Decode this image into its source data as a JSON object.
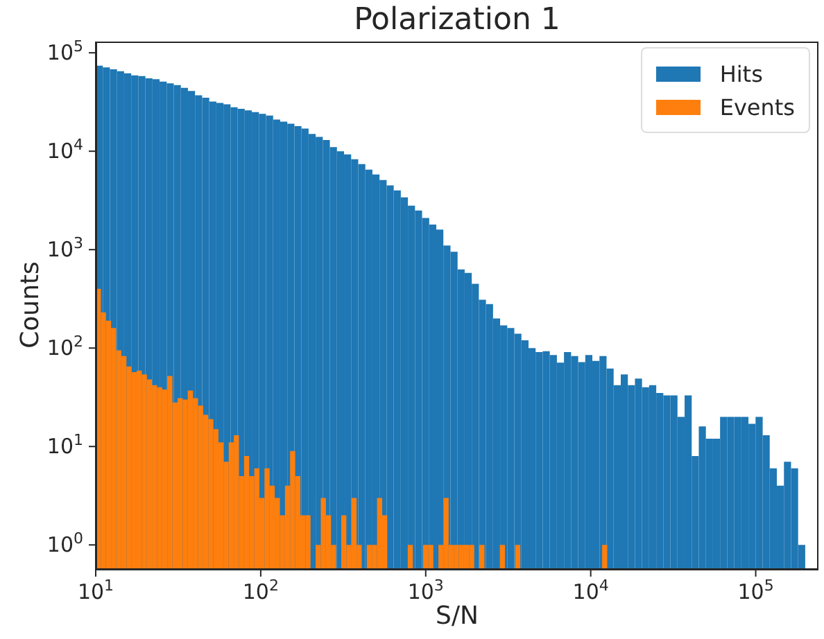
{
  "chart_data": {
    "type": "histogram",
    "title": "Polarization 1",
    "xlabel": "S/N",
    "ylabel": "Counts",
    "log": "xy",
    "legend": "top right",
    "xlim": [
      10,
      240000
    ],
    "ylim": [
      0.56,
      130000
    ],
    "xticks": [
      {
        "value": 10,
        "label": "10$^{1}$"
      },
      {
        "value": 100,
        "label": "10$^{2}$"
      },
      {
        "value": 1000,
        "label": "10$^{3}$"
      },
      {
        "value": 10000,
        "label": "10$^{4}$"
      },
      {
        "value": 100000,
        "label": "10$^{5}$"
      }
    ],
    "yticks": [
      {
        "value": 1,
        "label": "10$^{0}$"
      },
      {
        "value": 10,
        "label": "10$^{1}$"
      },
      {
        "value": 100,
        "label": "10$^{2}$"
      },
      {
        "value": 1000,
        "label": "10$^{3}$"
      },
      {
        "value": 10000,
        "label": "10$^{4}$"
      },
      {
        "value": 100000,
        "label": "10$^{5}$"
      }
    ],
    "bins": [
      10,
      11.04,
      12.19,
      13.46,
      14.86,
      16.41,
      18.11,
      20,
      22.08,
      24.38,
      26.92,
      29.72,
      32.81,
      36.22,
      39.99,
      44.16,
      48.75,
      53.83,
      59.43,
      65.61,
      72.44,
      79.98,
      88.31,
      97.5,
      107.6,
      118.9,
      131.2,
      144.9,
      160,
      176.6,
      195,
      215.3,
      237.7,
      262.4,
      289.7,
      319.9,
      353.2,
      389.9,
      430.5,
      475.3,
      524.8,
      579.4,
      639.7,
      706.3,
      779.8,
      861,
      950.6,
      1050,
      1159,
      1279,
      1413,
      1560,
      1722,
      1901,
      2099,
      2317,
      2559,
      2825,
      3119,
      3443,
      3802,
      4198,
      4634,
      5117,
      5649,
      6237,
      6887,
      7603,
      8395,
      9268,
      10230,
      11300,
      12470,
      13770,
      15210,
      16790,
      18540,
      20460,
      22590,
      24950,
      27540,
      30410,
      33570,
      37070,
      40930,
      45190,
      49890,
      55080,
      60810,
      67140,
      74130,
      81850,
      90360,
      99770,
      110200,
      121600,
      134300,
      148300,
      163700,
      180700,
      199500
    ],
    "series": [
      {
        "name": "Hits",
        "color": "#1f77b4",
        "values": [
          74000,
          71000,
          68000,
          65000,
          62000,
          59000,
          58000,
          55000,
          54000,
          51000,
          49000,
          47000,
          44000,
          41000,
          37000,
          35000,
          32000,
          31000,
          30000,
          28000,
          27000,
          26000,
          25000,
          24000,
          23000,
          21000,
          20000,
          19000,
          18000,
          17000,
          15000,
          14000,
          13000,
          11000,
          10000,
          9300,
          8300,
          7400,
          6500,
          5800,
          5100,
          4500,
          4000,
          3400,
          2800,
          2500,
          2100,
          1800,
          1600,
          1100,
          950,
          630,
          580,
          450,
          310,
          280,
          200,
          170,
          160,
          140,
          120,
          100,
          91,
          93,
          85,
          71,
          91,
          83,
          72,
          85,
          74,
          83,
          62,
          42,
          54,
          42,
          49,
          40,
          42,
          35,
          33,
          33,
          20,
          33,
          8,
          16,
          12,
          12,
          20,
          20,
          20,
          20,
          17,
          20,
          13,
          6,
          4,
          7,
          6,
          1
        ]
      },
      {
        "name": "Events",
        "color": "#ff7f0e",
        "bins": [
          10,
          10.74,
          11.53,
          12.39,
          13.3,
          14.29,
          15.35,
          16.48,
          17.7,
          19.01,
          20.42,
          21.93,
          23.55,
          25.29,
          27.16,
          29.17,
          31.33,
          33.65,
          36.14,
          38.82,
          41.69,
          44.77,
          48.08,
          51.64,
          55.46,
          59.57,
          63.97,
          68.71,
          73.79,
          79.25,
          85.11,
          91.41,
          98.17,
          105.4,
          113.2,
          121.6,
          130.6,
          140.3,
          150.7,
          161.8,
          173.8,
          186.6,
          200.4,
          215.3,
          231.2,
          248.3,
          266.7,
          286.4,
          307.6,
          330.4,
          354.8,
          381.1,
          409.3,
          439.5,
          472.1,
          507,
          544.5,
          584.8,
          628.1,
          674.5,
          724.4,
          778,
          835.6,
          897.4,
          963.8,
          1035,
          1112,
          1194,
          1282,
          1377,
          1479,
          1589,
          1706,
          1832,
          1968,
          2113,
          2270,
          2438,
          2618,
          2812,
          3020,
          3243,
          3483,
          3741,
          4018,
          4315,
          4634,
          4977,
          5346,
          5741,
          6166,
          6622,
          7112,
          7638,
          8204,
          8810,
          9462,
          10160,
          10910,
          11720,
          12590
        ],
        "values": [
          400,
          230,
          190,
          160,
          95,
          83,
          65,
          57,
          59,
          54,
          48,
          42,
          40,
          38,
          52,
          28,
          31,
          30,
          37,
          31,
          26,
          21,
          19,
          15,
          11,
          7,
          11,
          13,
          5,
          8,
          5,
          6,
          3,
          6,
          4,
          3,
          2,
          4,
          9,
          5,
          2,
          2,
          null,
          1,
          3,
          2,
          1,
          null,
          2,
          1,
          3,
          1,
          null,
          1,
          1,
          3,
          2,
          null,
          null,
          null,
          null,
          1,
          null,
          null,
          1,
          1,
          null,
          1,
          3,
          1,
          1,
          1,
          1,
          1,
          null,
          1,
          null,
          null,
          null,
          1,
          null,
          null,
          1,
          null,
          null,
          null,
          null,
          null,
          null,
          null,
          null,
          null,
          null,
          null,
          null,
          null,
          null,
          null,
          null,
          1
        ]
      }
    ]
  }
}
